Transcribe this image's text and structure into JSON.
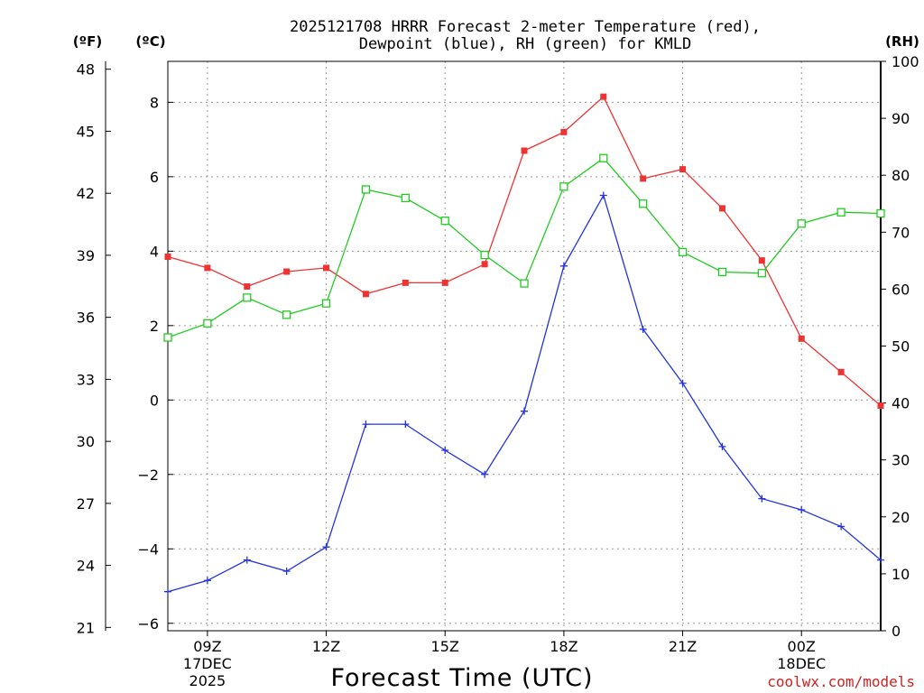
{
  "chart_data": {
    "type": "line",
    "title_lines": [
      "2025121708 HRRR Forecast 2-meter Temperature (red),",
      "Dewpoint (blue), RH (green) for KMLD"
    ],
    "units": {
      "fahrenheit": "(ºF)",
      "celsius": "(ºC)",
      "rh": "(RH)"
    },
    "xlabel": "Forecast Time (UTC)",
    "credit": "coolwx.com/models",
    "x_hours": [
      8,
      9,
      10,
      11,
      12,
      13,
      14,
      15,
      16,
      17,
      18,
      19,
      20,
      21,
      22,
      23,
      24,
      25,
      26
    ],
    "xlim": [
      8,
      26
    ],
    "x_ticks": [
      {
        "hour": 9,
        "lines": [
          "09Z",
          "17DEC",
          "2025"
        ]
      },
      {
        "hour": 12,
        "lines": [
          "12Z"
        ]
      },
      {
        "hour": 15,
        "lines": [
          "15Z"
        ]
      },
      {
        "hour": 18,
        "lines": [
          "18Z"
        ]
      },
      {
        "hour": 21,
        "lines": [
          "21Z"
        ]
      },
      {
        "hour": 24,
        "lines": [
          "00Z",
          "18DEC"
        ]
      }
    ],
    "celsius_axis": {
      "range": [
        -6.2,
        9.1
      ],
      "ticks": [
        -6,
        -4,
        -2,
        0,
        2,
        4,
        6,
        8
      ]
    },
    "fahrenheit_axis": {
      "ticks": [
        21,
        24,
        27,
        30,
        33,
        36,
        39,
        42,
        45,
        48
      ]
    },
    "rh_axis": {
      "range": [
        0,
        100
      ],
      "ticks": [
        0,
        10,
        20,
        30,
        40,
        50,
        60,
        70,
        80,
        90,
        100
      ]
    },
    "series": [
      {
        "name": "Temperature",
        "axis": "celsius",
        "color": "#ee3333",
        "marker": "filled-square",
        "values": [
          3.85,
          3.55,
          3.05,
          3.45,
          3.55,
          2.85,
          3.15,
          3.15,
          3.65,
          6.7,
          7.2,
          8.15,
          5.95,
          6.2,
          5.15,
          3.75,
          1.65,
          0.75,
          -0.15
        ]
      },
      {
        "name": "Dewpoint",
        "axis": "celsius",
        "color": "#2233dd",
        "marker": "plus",
        "values": [
          -5.15,
          -4.85,
          -4.3,
          -4.6,
          -3.95,
          -0.65,
          -0.65,
          -1.35,
          -2.0,
          -0.3,
          3.6,
          5.5,
          1.9,
          0.45,
          -1.25,
          -2.65,
          -2.95,
          -3.4,
          -4.3
        ]
      },
      {
        "name": "RH",
        "axis": "rh",
        "color": "#22cc22",
        "marker": "open-square",
        "values": [
          51.5,
          54,
          58.5,
          55.5,
          57.5,
          77.5,
          76,
          72,
          66,
          61,
          78,
          83,
          75,
          66.5,
          63,
          62.8,
          71.5,
          73.5,
          73.3
        ]
      }
    ]
  }
}
